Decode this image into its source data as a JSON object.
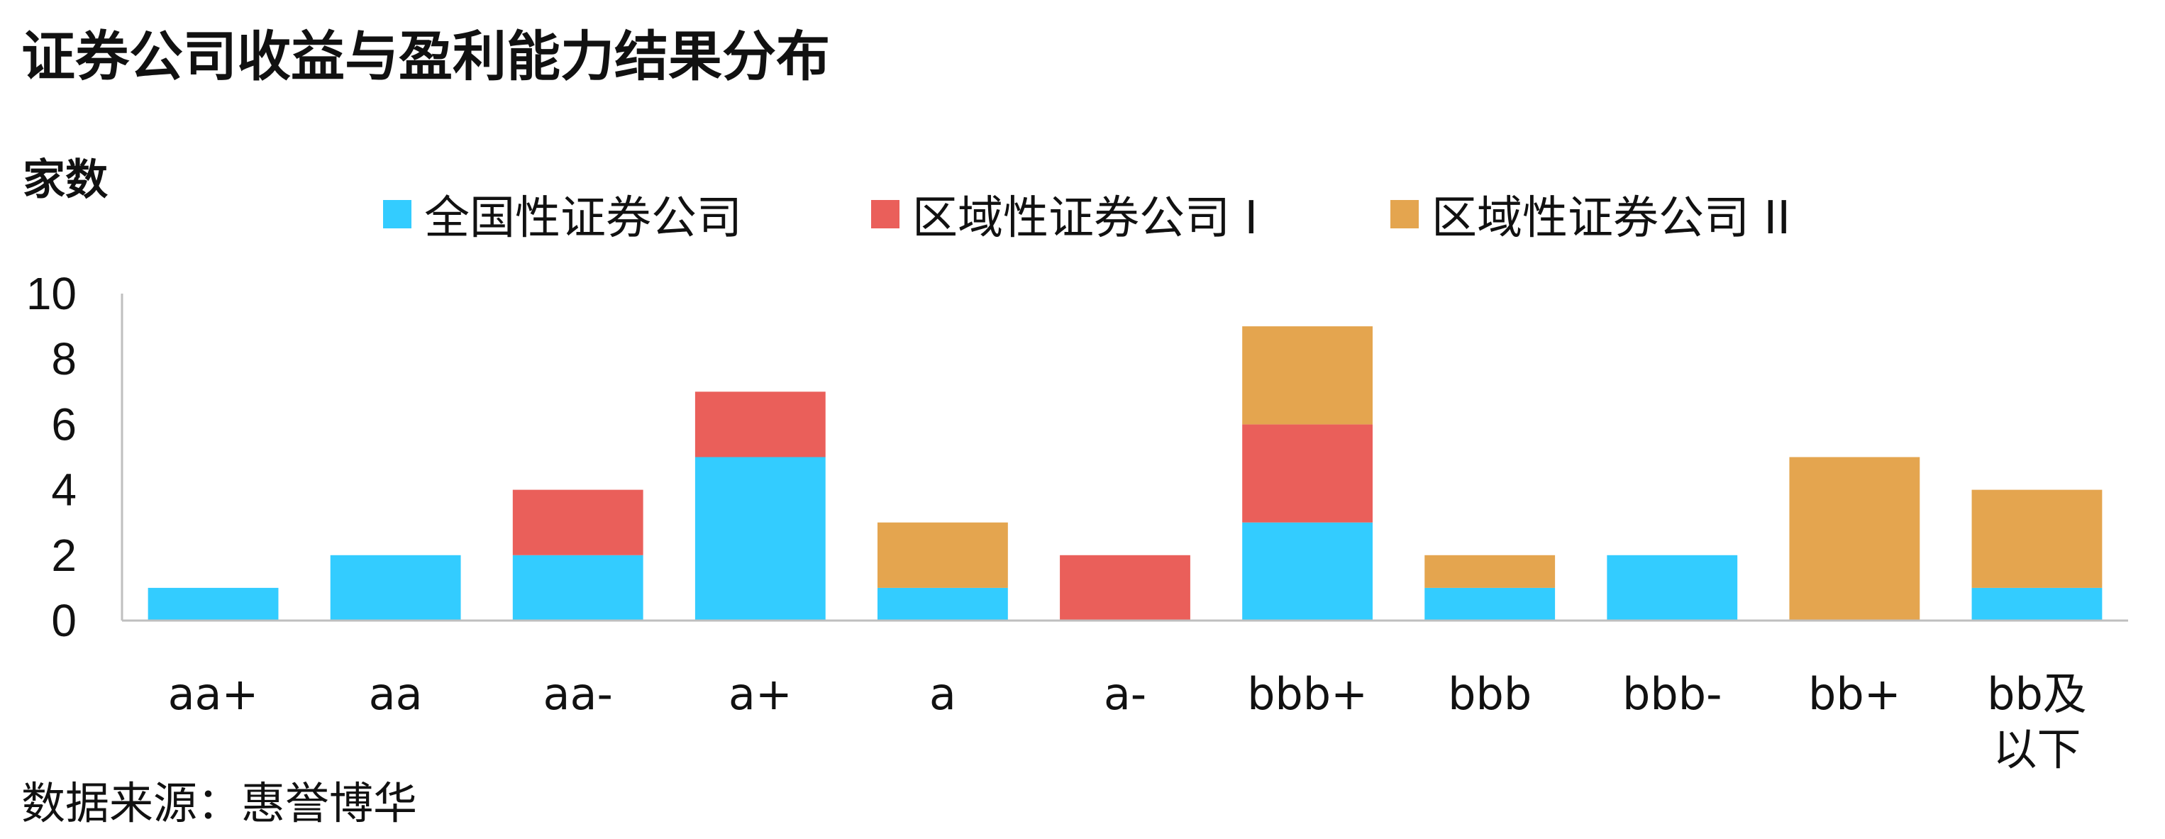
{
  "chart_data": {
    "type": "bar",
    "stacked": true,
    "title": "证券公司收益与盈利能力结果分布",
    "ylabel": "家数",
    "xlabel": "",
    "source": "数据来源：惠誉博华",
    "ylim": [
      0,
      10
    ],
    "yticks": [
      0,
      2,
      4,
      6,
      8,
      10
    ],
    "grid": false,
    "legend_position": "top",
    "categories": [
      "aa+",
      "aa",
      "aa-",
      "a+",
      "a",
      "a-",
      "bbb+",
      "bbb",
      "bbb-",
      "bb+",
      "bb及以下"
    ],
    "series": [
      {
        "name": "全国性证券公司",
        "color": "#33CCFF",
        "values": [
          1,
          2,
          2,
          5,
          1,
          0,
          3,
          1,
          2,
          0,
          1
        ]
      },
      {
        "name": "区域性证券公司 I",
        "color": "#EA5F5A",
        "values": [
          0,
          0,
          2,
          2,
          0,
          2,
          3,
          0,
          0,
          0,
          0
        ]
      },
      {
        "name": "区域性证券公司 II",
        "color": "#E4A54F",
        "values": [
          0,
          0,
          0,
          0,
          2,
          0,
          3,
          1,
          0,
          5,
          3
        ]
      }
    ],
    "axis_color": "#BFBFBF"
  }
}
